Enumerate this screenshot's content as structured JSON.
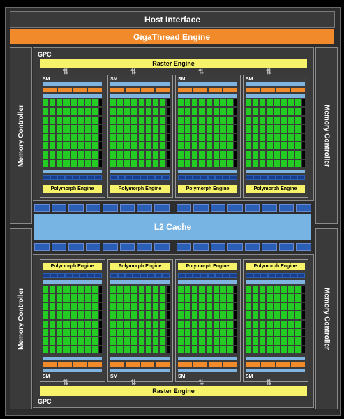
{
  "host_interface": "Host Interface",
  "gigathread_engine": "GigaThread Engine",
  "memory_controller_label": "Memory Controller",
  "l2_cache": "L2 Cache",
  "gpc_label": "GPC",
  "raster_engine": "Raster Engine",
  "sm_label": "SM",
  "polymorph_engine": "Polymorph Engine",
  "colors": {
    "background": "#000000",
    "chip": "#2d2d2d",
    "gigathread": "#f08a2b",
    "raster": "#f6f26a",
    "l2": "#78b4e3",
    "core": "#22cc22",
    "navy": "#2a5fb5"
  }
}
